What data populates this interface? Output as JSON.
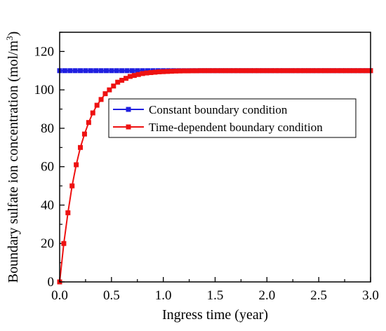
{
  "chart_data": {
    "type": "line",
    "xlabel": "Ingress time  (year)",
    "ylabel_main": "Boundary sulfate ion concentration (mol/m",
    "ylabel_sup": "3",
    "ylabel_close": ")",
    "xlim": [
      0,
      3.0
    ],
    "ylim": [
      0,
      130
    ],
    "xticks": [
      "0.0",
      "0.5",
      "1.0",
      "1.5",
      "2.0",
      "2.5",
      "3.0"
    ],
    "yticks": [
      "0",
      "20",
      "40",
      "60",
      "80",
      "100",
      "120"
    ],
    "legend_position": "center-right",
    "grid": false,
    "series": [
      {
        "name": "Constant boundary condition",
        "color": "#1f1fe0",
        "marker": "square",
        "x": [
          0.0,
          0.05,
          0.1,
          0.15,
          0.2,
          0.25,
          0.3,
          0.35,
          0.4,
          0.45,
          0.5,
          0.55,
          0.6,
          0.65,
          0.7,
          0.75,
          0.8,
          0.85,
          0.9,
          0.95,
          1.0,
          1.05,
          1.1,
          1.15,
          1.2,
          1.25,
          1.3,
          1.35,
          1.4,
          1.45,
          1.5,
          1.55,
          1.6,
          1.65,
          1.7,
          1.75,
          1.8,
          1.85,
          1.9,
          1.95,
          2.0,
          2.05,
          2.1,
          2.15,
          2.2,
          2.25,
          2.3,
          2.35,
          2.4,
          2.45,
          2.5,
          2.55,
          2.6,
          2.65,
          2.7,
          2.75,
          2.8,
          2.85,
          2.9,
          2.95,
          3.0
        ],
        "y": [
          110,
          110,
          110,
          110,
          110,
          110,
          110,
          110,
          110,
          110,
          110,
          110,
          110,
          110,
          110,
          110,
          110,
          110,
          110,
          110,
          110,
          110,
          110,
          110,
          110,
          110,
          110,
          110,
          110,
          110,
          110,
          110,
          110,
          110,
          110,
          110,
          110,
          110,
          110,
          110,
          110,
          110,
          110,
          110,
          110,
          110,
          110,
          110,
          110,
          110,
          110,
          110,
          110,
          110,
          110,
          110,
          110,
          110,
          110,
          110,
          110
        ]
      },
      {
        "name": "Time-dependent boundary condition",
        "color": "#ee1111",
        "marker": "square",
        "x": [
          0.0,
          0.04,
          0.08,
          0.12,
          0.16,
          0.2,
          0.24,
          0.28,
          0.32,
          0.36,
          0.4,
          0.44,
          0.48,
          0.52,
          0.56,
          0.6,
          0.64,
          0.68,
          0.72,
          0.76,
          0.8,
          0.84,
          0.88,
          0.92,
          0.96,
          1.0,
          1.04,
          1.08,
          1.12,
          1.16,
          1.2,
          1.24,
          1.28,
          1.32,
          1.36,
          1.4,
          1.44,
          1.48,
          1.52,
          1.56,
          1.6,
          1.64,
          1.68,
          1.72,
          1.76,
          1.8,
          1.84,
          1.88,
          1.92,
          1.96,
          2.0,
          2.04,
          2.08,
          2.12,
          2.16,
          2.2,
          2.24,
          2.28,
          2.32,
          2.36,
          2.4,
          2.44,
          2.48,
          2.52,
          2.56,
          2.6,
          2.64,
          2.68,
          2.72,
          2.76,
          2.8,
          2.84,
          2.88,
          2.92,
          2.96,
          3.0
        ],
        "y": [
          0,
          20,
          36,
          50,
          61,
          70,
          77,
          83,
          88,
          92,
          95,
          98,
          100,
          102,
          104,
          105,
          106,
          107,
          107.5,
          108,
          108.5,
          108.8,
          109,
          109.2,
          109.4,
          109.5,
          109.6,
          109.7,
          109.8,
          109.85,
          109.9,
          109.9,
          109.95,
          109.95,
          110,
          110,
          110,
          110,
          110,
          110,
          110,
          110,
          110,
          110,
          110,
          110,
          110,
          110,
          110,
          110,
          110,
          110,
          110,
          110,
          110,
          110,
          110,
          110,
          110,
          110,
          110,
          110,
          110,
          110,
          110,
          110,
          110,
          110,
          110,
          110,
          110,
          110,
          110,
          110,
          110,
          110
        ]
      }
    ]
  }
}
